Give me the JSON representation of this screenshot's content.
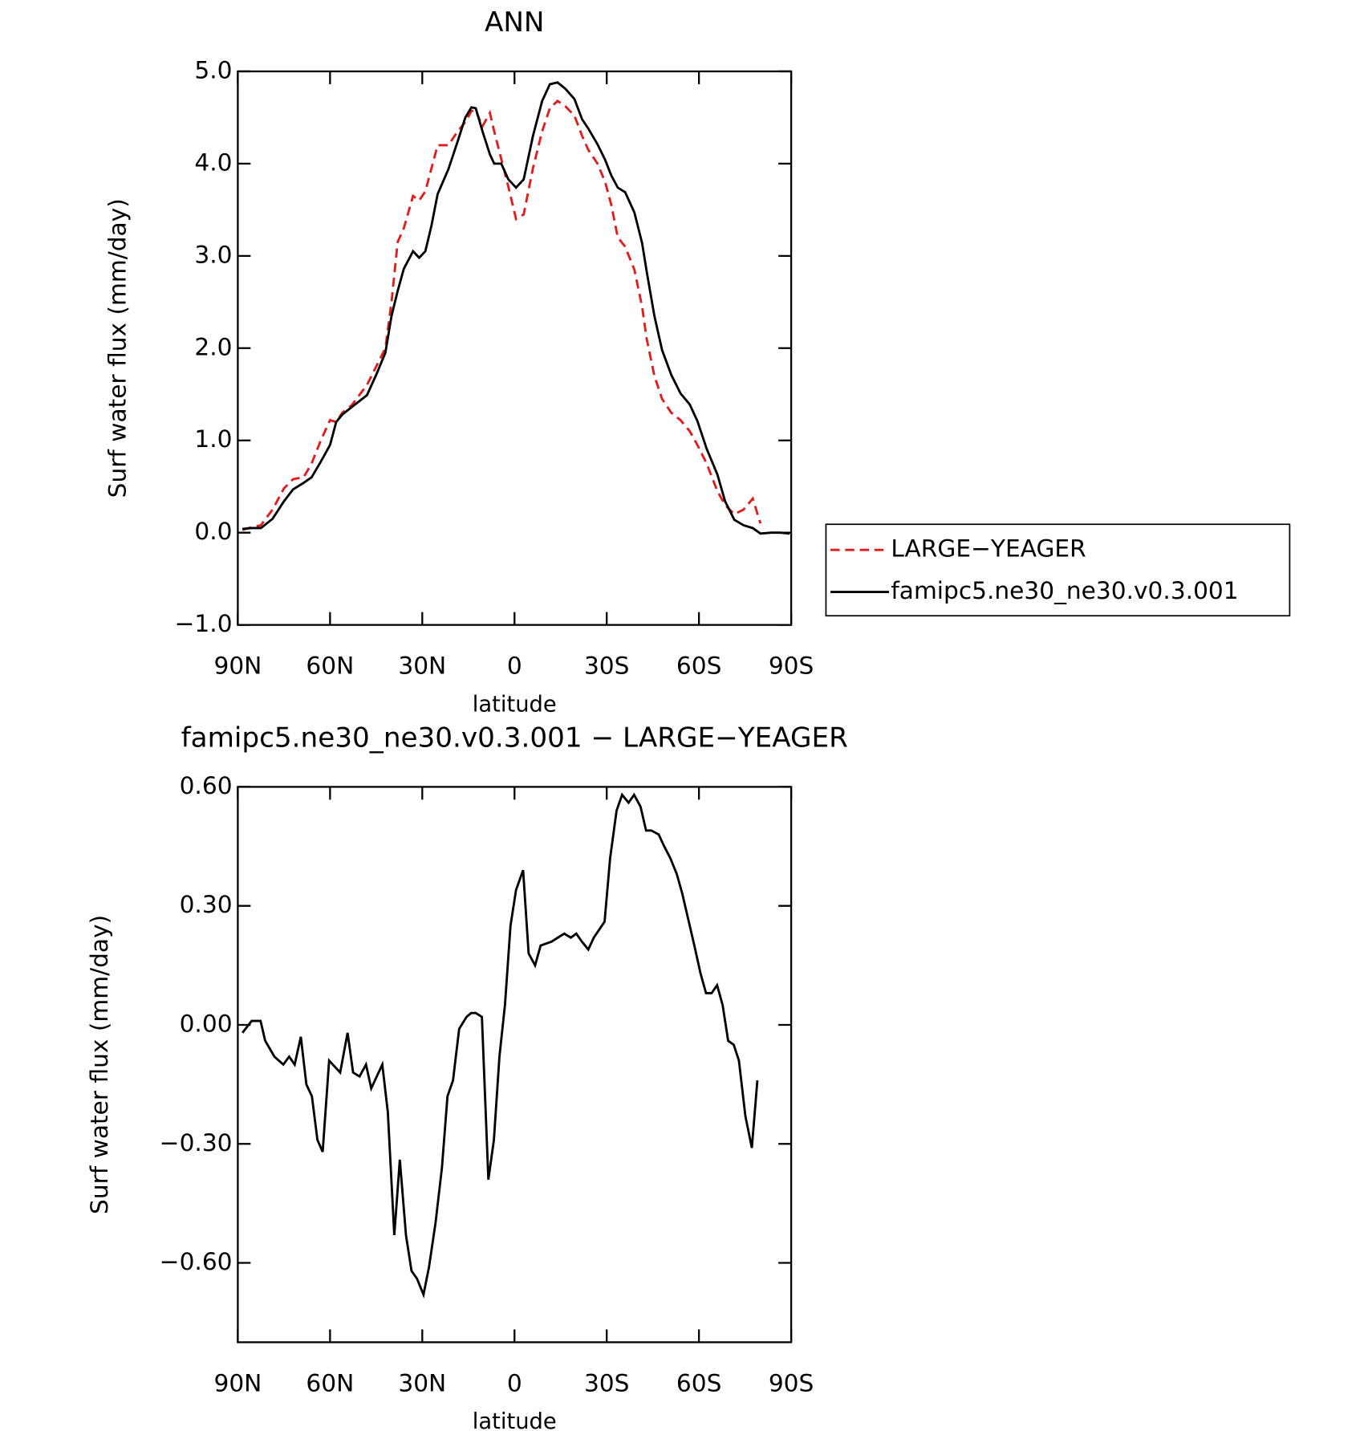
{
  "chart_data": [
    {
      "type": "line",
      "title": "ANN",
      "x_label": "latitude",
      "y_label": "Surf water flux (mm/day)",
      "x": [
        88.5,
        85.5,
        82.5,
        78.7,
        75,
        72,
        68.6,
        66,
        63,
        60,
        58,
        56,
        53,
        48,
        45,
        42,
        40,
        38,
        36,
        33,
        31,
        29,
        27,
        25,
        21.5,
        18.5,
        16,
        14,
        12.6,
        10.5,
        8,
        6.6,
        4.3,
        2,
        -0.5,
        -3,
        -6,
        -9,
        -11.5,
        -14,
        -16.6,
        -19.5,
        -22,
        -24,
        -27,
        -29.5,
        -31.5,
        -33.6,
        -36,
        -39,
        -41.5,
        -43,
        -45.5,
        -48,
        -51,
        -54,
        -57,
        -59.5,
        -62.5,
        -66,
        -68.5,
        -71.5,
        -74.5,
        -77.5,
        -80,
        -83.5,
        -86.5,
        -89.5
      ],
      "series": [
        {
          "name": "LARGE−YEAGER",
          "color": "#e41a1c",
          "line_style": "dashed",
          "values": [
            0.03,
            0.06,
            0.08,
            0.25,
            0.48,
            0.58,
            0.6,
            0.75,
            1.0,
            1.22,
            1.2,
            1.3,
            1.38,
            1.6,
            1.8,
            2.0,
            2.5,
            3.15,
            3.3,
            3.65,
            3.6,
            3.7,
            3.95,
            4.2,
            4.2,
            4.35,
            4.45,
            4.57,
            4.58,
            4.4,
            4.55,
            4.35,
            4.05,
            3.75,
            3.4,
            3.45,
            3.95,
            4.35,
            4.6,
            4.68,
            4.62,
            4.52,
            4.3,
            4.15,
            4.0,
            3.8,
            3.55,
            3.2,
            3.1,
            2.85,
            2.45,
            2.1,
            1.7,
            1.45,
            1.3,
            1.22,
            1.1,
            0.95,
            0.75,
            0.45,
            0.3,
            0.2,
            0.25,
            0.37,
            0.1,
            null,
            null,
            null
          ]
        },
        {
          "name": "famipc5.ne30_ne30.v0.3.001",
          "color": "#000000",
          "line_style": "solid",
          "values": [
            0.04,
            0.05,
            0.05,
            0.15,
            0.34,
            0.47,
            0.54,
            0.6,
            0.77,
            0.95,
            1.2,
            1.28,
            1.36,
            1.49,
            1.71,
            1.95,
            2.35,
            2.62,
            2.86,
            3.05,
            2.98,
            3.05,
            3.33,
            3.67,
            3.94,
            4.24,
            4.5,
            4.61,
            4.6,
            4.36,
            4.1,
            4.0,
            4.0,
            3.83,
            3.74,
            3.83,
            4.3,
            4.68,
            4.86,
            4.88,
            4.81,
            4.7,
            4.48,
            4.38,
            4.21,
            4.04,
            3.87,
            3.74,
            3.69,
            3.47,
            3.14,
            2.83,
            2.35,
            1.98,
            1.71,
            1.51,
            1.39,
            1.21,
            0.91,
            0.63,
            0.34,
            0.14,
            0.08,
            0.05,
            -0.01,
            0.0,
            0.0,
            -0.01
          ]
        }
      ],
      "xlim": [
        90,
        -90
      ],
      "xticks": [
        {
          "value": 90,
          "label": "90N"
        },
        {
          "value": 60,
          "label": "60N"
        },
        {
          "value": 30,
          "label": "30N"
        },
        0,
        {
          "value": -30,
          "label": "30S"
        },
        {
          "value": -60,
          "label": "60S"
        },
        {
          "value": -90,
          "label": "90S"
        }
      ],
      "ylim": [
        -1,
        5
      ],
      "yticks": [
        {
          "value": -1,
          "label": "−1.0"
        },
        {
          "value": 0,
          "label": "0.0"
        },
        {
          "value": 1,
          "label": "1.0"
        },
        {
          "value": 2,
          "label": "2.0"
        },
        {
          "value": 3,
          "label": "3.0"
        },
        {
          "value": 4,
          "label": "4.0"
        },
        {
          "value": 5,
          "label": "5.0"
        }
      ],
      "grid": false,
      "legend": "right"
    },
    {
      "type": "line",
      "title": "famipc5.ne30_ne30.v0.3.001 − LARGE−YEAGER",
      "x_label": "latitude",
      "y_label": "Surf water flux (mm/day)",
      "x": [
        88.5,
        85.5,
        82.6,
        81.1,
        78.1,
        75.2,
        73.3,
        71.5,
        69.5,
        67.7,
        65.9,
        64.1,
        62.4,
        60.3,
        56.7,
        54.3,
        52.5,
        50.4,
        48.3,
        46.6,
        43.0,
        41.2,
        39.1,
        37.3,
        35.3,
        33.5,
        31.7,
        29.6,
        27.8,
        25.7,
        23.6,
        21.8,
        20.0,
        18.0,
        15.6,
        14.1,
        12.6,
        10.6,
        8.5,
        6.7,
        4.9,
        3.1,
        1.3,
        -0.5,
        -2.8,
        -4.6,
        -6.7,
        -8.5,
        -12.1,
        -14.1,
        -16.2,
        -18.3,
        -20.1,
        -21.9,
        -24.0,
        -25.8,
        -29.3,
        -31.1,
        -33.2,
        -35.0,
        -37.1,
        -38.9,
        -41.0,
        -42.8,
        -44.5,
        -46.9,
        -48.7,
        -50.7,
        -52.8,
        -54.6,
        -56.7,
        -58.5,
        -60.5,
        -62.3,
        -64.1,
        -65.9,
        -67.7,
        -69.5,
        -71.3,
        -73.0,
        -75.1,
        -77.2,
        -79.0
      ],
      "series": [
        {
          "color": "#000000",
          "line_style": "solid",
          "values": [
            -0.02,
            0.01,
            0.01,
            -0.04,
            -0.08,
            -0.1,
            -0.08,
            -0.1,
            -0.03,
            -0.15,
            -0.18,
            -0.29,
            -0.32,
            -0.09,
            -0.12,
            -0.02,
            -0.12,
            -0.13,
            -0.1,
            -0.16,
            -0.1,
            -0.22,
            -0.53,
            -0.34,
            -0.53,
            -0.62,
            -0.64,
            -0.68,
            -0.61,
            -0.5,
            -0.36,
            -0.18,
            -0.14,
            -0.01,
            0.02,
            0.03,
            0.03,
            0.02,
            -0.39,
            -0.29,
            -0.08,
            0.05,
            0.25,
            0.34,
            0.39,
            0.18,
            0.15,
            0.2,
            0.21,
            0.22,
            0.23,
            0.22,
            0.23,
            0.21,
            0.19,
            0.22,
            0.26,
            0.42,
            0.54,
            0.58,
            0.56,
            0.58,
            0.55,
            0.49,
            0.49,
            0.48,
            0.45,
            0.42,
            0.38,
            0.33,
            0.26,
            0.2,
            0.13,
            0.08,
            0.08,
            0.1,
            0.05,
            -0.04,
            -0.05,
            -0.09,
            -0.23,
            -0.31,
            -0.14
          ]
        }
      ],
      "xlim": [
        90,
        -90
      ],
      "xticks": [
        {
          "value": 90,
          "label": "90N"
        },
        {
          "value": 60,
          "label": "60N"
        },
        {
          "value": 30,
          "label": "30N"
        },
        0,
        {
          "value": -30,
          "label": "30S"
        },
        {
          "value": -60,
          "label": "60S"
        },
        {
          "value": -90,
          "label": "90S"
        }
      ],
      "ylim": [
        -0.8,
        0.6
      ],
      "yticks": [
        {
          "value": -0.6,
          "label": "−0.60"
        },
        {
          "value": -0.3,
          "label": "−0.30"
        },
        {
          "value": 0,
          "label": "0.00"
        },
        {
          "value": 0.3,
          "label": "0.30"
        },
        {
          "value": 0.6,
          "label": "0.60"
        }
      ],
      "grid": false
    }
  ]
}
